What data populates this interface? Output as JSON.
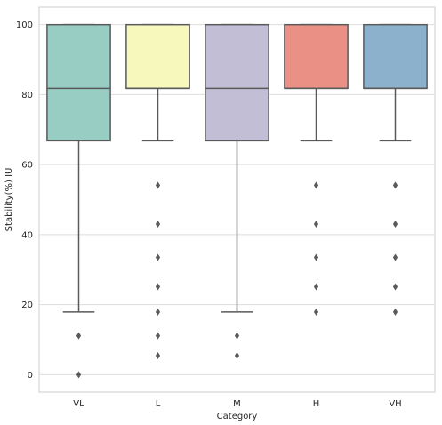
{
  "chart_data": {
    "type": "box",
    "title": "",
    "xlabel": "Category",
    "ylabel": "Stability(%) IU",
    "categories": [
      "VL",
      "L",
      "M",
      "H",
      "VH"
    ],
    "ylim": [
      -5,
      105
    ],
    "yticks": [
      0,
      20,
      40,
      60,
      80,
      100
    ],
    "grid": "horizontal",
    "boxes": [
      {
        "category": "VL",
        "color": "#98cdc3",
        "whisker_low": 17.9,
        "q1": 66.8,
        "median": 81.8,
        "q3": 100,
        "whisker_high": 100,
        "outliers": [
          11.1,
          0
        ]
      },
      {
        "category": "L",
        "color": "#f7f8bb",
        "whisker_low": 66.8,
        "q1": 81.8,
        "median": 81.8,
        "q3": 100,
        "whisker_high": 100,
        "outliers": [
          54.1,
          43.0,
          33.5,
          25.1,
          17.9,
          11.1,
          5.4
        ]
      },
      {
        "category": "M",
        "color": "#c1bed6",
        "whisker_low": 17.9,
        "q1": 66.8,
        "median": 81.8,
        "q3": 100,
        "whisker_high": 100,
        "outliers": [
          11.1,
          5.4
        ]
      },
      {
        "category": "H",
        "color": "#eb9084",
        "whisker_low": 66.8,
        "q1": 81.8,
        "median": 81.8,
        "q3": 100,
        "whisker_high": 100,
        "outliers": [
          54.1,
          43.0,
          33.5,
          25.1,
          17.9
        ]
      },
      {
        "category": "VH",
        "color": "#8cb1cc",
        "whisker_low": 66.8,
        "q1": 81.8,
        "median": 81.8,
        "q3": 100,
        "whisker_high": 100,
        "outliers": [
          54.1,
          43.0,
          33.5,
          25.1,
          17.9
        ]
      }
    ]
  }
}
